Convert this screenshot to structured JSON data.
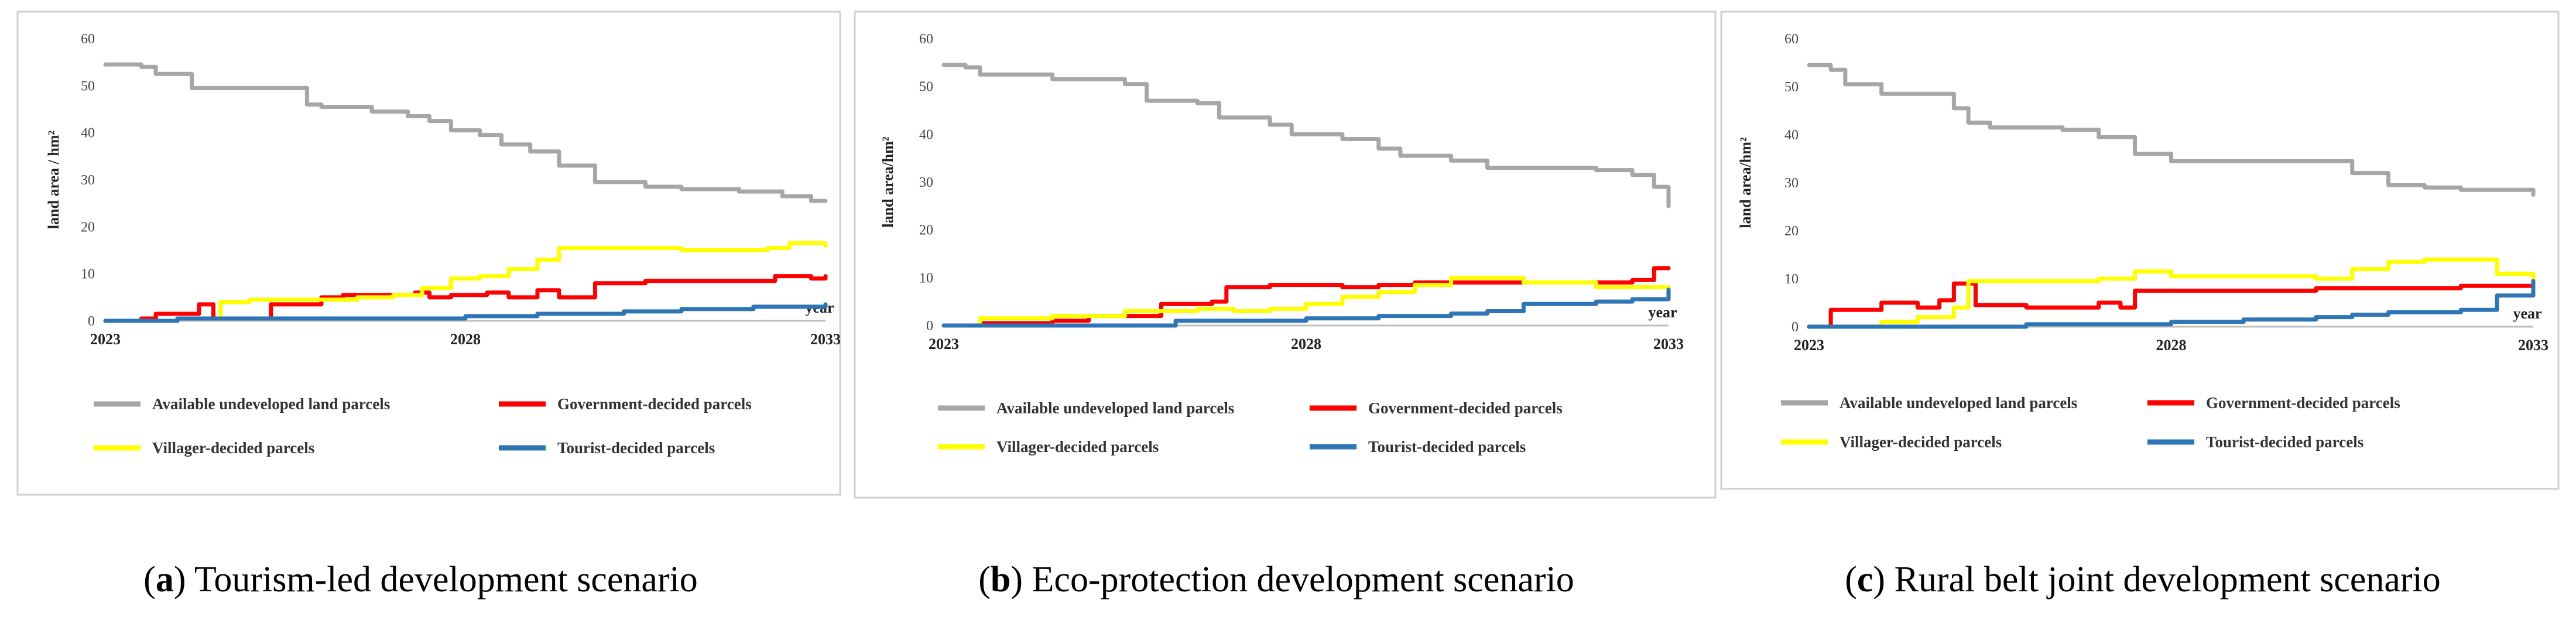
{
  "chart_data": [
    {
      "type": "line",
      "ylabel": "land area / hm²",
      "xlabel": "year",
      "xlim": [
        2023,
        2033
      ],
      "ylim": [
        0,
        60
      ],
      "yticks": [
        0,
        10,
        20,
        30,
        40,
        50,
        60
      ],
      "xticks": [
        2023,
        2028,
        2033
      ],
      "series": [
        {
          "name": "Available undeveloped land parcels",
          "color": "#a6a6a6",
          "x": [
            2023,
            2023.5,
            2023.7,
            2024.2,
            2025,
            2025.8,
            2026,
            2026.7,
            2027.2,
            2027.5,
            2027.8,
            2028.2,
            2028.5,
            2028.9,
            2029.3,
            2029.8,
            2030.5,
            2031,
            2031.8,
            2032.4,
            2032.8,
            2033
          ],
          "values": [
            54.5,
            54,
            52.5,
            49.5,
            49.5,
            46,
            45.5,
            44.5,
            43.5,
            42.5,
            40.5,
            39.5,
            37.5,
            36,
            33,
            29.5,
            28.5,
            28,
            27.5,
            26.5,
            25.5,
            25.5
          ]
        },
        {
          "name": "Government-decided parcels",
          "color": "#ff0000",
          "x": [
            2023,
            2023.5,
            2023.7,
            2024,
            2024.3,
            2024.5,
            2025.2,
            2025.3,
            2026,
            2026.3,
            2026.7,
            2027.3,
            2027.5,
            2027.8,
            2028.3,
            2028.6,
            2029,
            2029.3,
            2029.8,
            2030.5,
            2031,
            2032.3,
            2032.8,
            2033
          ],
          "values": [
            0,
            0.5,
            1.5,
            1.5,
            3.5,
            0.5,
            0.5,
            3.5,
            5,
            5.5,
            5.5,
            6,
            5,
            5.5,
            6,
            5,
            6.5,
            5,
            8,
            8.5,
            8.5,
            9.5,
            9,
            9.5
          ]
        },
        {
          "name": "Villager-decided parcels",
          "color": "#ffff00",
          "x": [
            2023,
            2024,
            2024.6,
            2025,
            2026,
            2026.5,
            2027,
            2027.4,
            2027.8,
            2028.2,
            2028.6,
            2029,
            2029.3,
            2030,
            2031,
            2032.2,
            2032.5,
            2033
          ],
          "values": [
            0,
            0.5,
            4,
            4.5,
            4.5,
            5,
            5.5,
            7,
            9,
            9.5,
            11,
            13,
            15.5,
            15.5,
            15,
            15.5,
            16.5,
            16
          ]
        },
        {
          "name": "Tourist-decided parcels",
          "color": "#2e75b6",
          "x": [
            2023,
            2024,
            2025,
            2026,
            2027,
            2028,
            2029,
            2030,
            2030.2,
            2031,
            2032,
            2032.8,
            2033
          ],
          "values": [
            0,
            0.5,
            0.5,
            0.5,
            0.5,
            1,
            1.5,
            1.5,
            2,
            2.5,
            3,
            3,
            3.5
          ]
        }
      ]
    },
    {
      "type": "line",
      "ylabel": "land area/hm²",
      "xlabel": "year",
      "xlim": [
        2023,
        2033
      ],
      "ylim": [
        0,
        60
      ],
      "yticks": [
        0,
        10,
        20,
        30,
        40,
        50,
        60
      ],
      "xticks": [
        2023,
        2028,
        2033
      ],
      "series": [
        {
          "name": "Available undeveloped land parcels",
          "color": "#a6a6a6",
          "x": [
            2023,
            2023.3,
            2023.5,
            2024.5,
            2025.5,
            2025.8,
            2026.5,
            2026.8,
            2027.5,
            2027.8,
            2028.5,
            2029,
            2029.3,
            2030,
            2030.5,
            2031,
            2032,
            2032.5,
            2032.8,
            2033
          ],
          "values": [
            54.5,
            54,
            52.5,
            51.5,
            50.5,
            47,
            46.5,
            43.5,
            42,
            40,
            39,
            37,
            35.5,
            34.5,
            33,
            33,
            32.5,
            31.5,
            29,
            25
          ]
        },
        {
          "name": "Government-decided parcels",
          "color": "#ff0000",
          "x": [
            2023,
            2023.5,
            2024.5,
            2025,
            2025.8,
            2026,
            2026.7,
            2026.9,
            2027.5,
            2028,
            2028.5,
            2029,
            2029.5,
            2030,
            2031,
            2032,
            2032.5,
            2032.8,
            2033
          ],
          "values": [
            0,
            0.5,
            1,
            2,
            2,
            4.5,
            5,
            8,
            8.5,
            8.5,
            8,
            8.5,
            9,
            9,
            9,
            9,
            9.5,
            12,
            12
          ]
        },
        {
          "name": "Villager-decided parcels",
          "color": "#ffff00",
          "x": [
            2023,
            2023.5,
            2024.5,
            2025.5,
            2026,
            2026.5,
            2027,
            2027.5,
            2028,
            2028.5,
            2029,
            2029.5,
            2030,
            2030.5,
            2031,
            2032,
            2033
          ],
          "values": [
            0,
            1.5,
            2,
            3,
            3,
            3.5,
            3,
            3.5,
            4.5,
            6,
            7,
            8.5,
            10,
            10,
            9,
            8,
            8
          ]
        },
        {
          "name": "Tourist-decided parcels",
          "color": "#2e75b6",
          "x": [
            2023,
            2024,
            2025,
            2026,
            2026.2,
            2027,
            2028,
            2029,
            2030,
            2030.5,
            2031,
            2032,
            2032.5,
            2033
          ],
          "values": [
            0,
            0,
            0,
            0,
            1,
            1,
            1.5,
            2,
            2.5,
            3,
            4.5,
            5,
            5.5,
            7.5
          ]
        }
      ]
    },
    {
      "type": "line",
      "ylabel": "land area/hm²",
      "xlabel": "year",
      "xlim": [
        2023,
        2033
      ],
      "ylim": [
        0,
        60
      ],
      "yticks": [
        0,
        10,
        20,
        30,
        40,
        50,
        60
      ],
      "xticks": [
        2023,
        2028,
        2033
      ],
      "series": [
        {
          "name": "Available undeveloped land parcels",
          "color": "#a6a6a6",
          "x": [
            2023,
            2023.3,
            2023.5,
            2024,
            2025,
            2025.2,
            2025.5,
            2026.5,
            2027,
            2027.5,
            2028,
            2029,
            2030,
            2030.5,
            2031,
            2031.5,
            2032,
            2033
          ],
          "values": [
            54.5,
            53.5,
            50.5,
            48.5,
            45.5,
            42.5,
            41.5,
            41,
            39.5,
            36,
            34.5,
            34.5,
            34.5,
            32,
            29.5,
            29,
            28.5,
            27.5
          ]
        },
        {
          "name": "Government-decided parcels",
          "color": "#ff0000",
          "x": [
            2023,
            2023.3,
            2023.8,
            2024,
            2024.5,
            2024.8,
            2025,
            2025.3,
            2025.5,
            2026,
            2026.5,
            2027,
            2027.3,
            2027.5,
            2028,
            2029,
            2030,
            2031,
            2032,
            2033
          ],
          "values": [
            0,
            3.5,
            3.5,
            5,
            4,
            5.5,
            9,
            4.5,
            4.5,
            4,
            4,
            5,
            4,
            7.5,
            7.5,
            7.5,
            8,
            8,
            8.5,
            9
          ]
        },
        {
          "name": "Villager-decided parcels",
          "color": "#ffff00",
          "x": [
            2023,
            2024,
            2024.5,
            2025,
            2025.2,
            2026,
            2027,
            2027.5,
            2028,
            2029,
            2030,
            2030.5,
            2031,
            2031.5,
            2032,
            2032.5,
            2033
          ],
          "values": [
            0,
            1,
            2,
            4,
            9.5,
            9.5,
            10,
            11.5,
            10.5,
            10.5,
            10,
            12,
            13.5,
            14,
            14,
            11,
            10
          ]
        },
        {
          "name": "Tourist-decided parcels",
          "color": "#2e75b6",
          "x": [
            2023,
            2025,
            2026,
            2027.5,
            2028,
            2029,
            2030,
            2030.5,
            2031,
            2032,
            2032.5,
            2033
          ],
          "values": [
            0,
            0,
            0.5,
            0.5,
            1,
            1.5,
            2,
            2.5,
            3,
            3.5,
            6.5,
            9.5
          ]
        }
      ]
    }
  ],
  "captions": [
    {
      "letter": "a",
      "text": " Tourism-led development scenario"
    },
    {
      "letter": "b",
      "text": " Eco-protection development scenario"
    },
    {
      "letter": "c",
      "text": " Rural belt joint development scenario"
    }
  ]
}
